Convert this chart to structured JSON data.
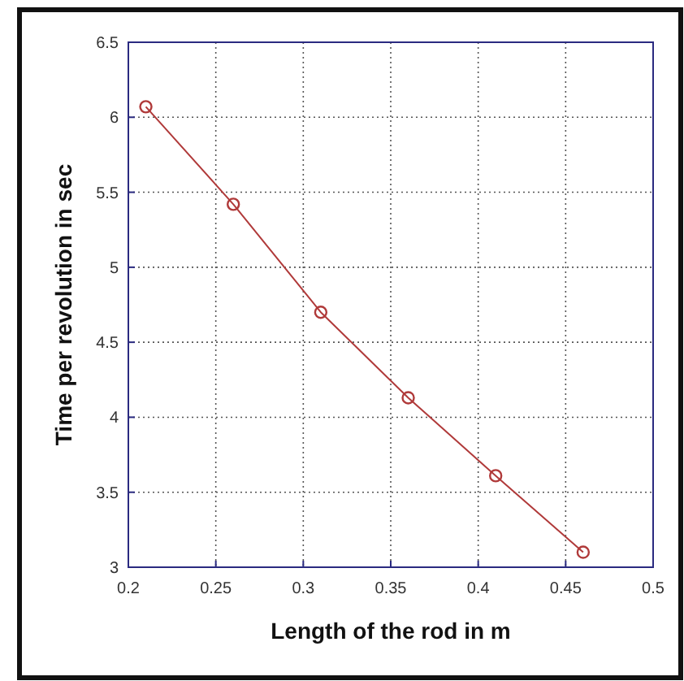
{
  "chart_data": {
    "type": "line",
    "xlabel": "Length of the rod in m",
    "ylabel": "Time per revolution in sec",
    "x": [
      0.21,
      0.26,
      0.31,
      0.36,
      0.41,
      0.46
    ],
    "series": [
      {
        "color": "#b03a3a",
        "values": [
          6.07,
          5.42,
          4.7,
          4.13,
          3.61,
          3.1
        ]
      }
    ],
    "xlim": [
      0.2,
      0.5
    ],
    "xticks": [
      0.2,
      0.25,
      0.3,
      0.35,
      0.4,
      0.45,
      0.5
    ],
    "ylim": [
      3,
      6.5
    ],
    "yticks": [
      3,
      3.5,
      4,
      4.5,
      5,
      5.5,
      6,
      6.5
    ],
    "grid": true,
    "marker": "circle",
    "line_style": "solid"
  }
}
